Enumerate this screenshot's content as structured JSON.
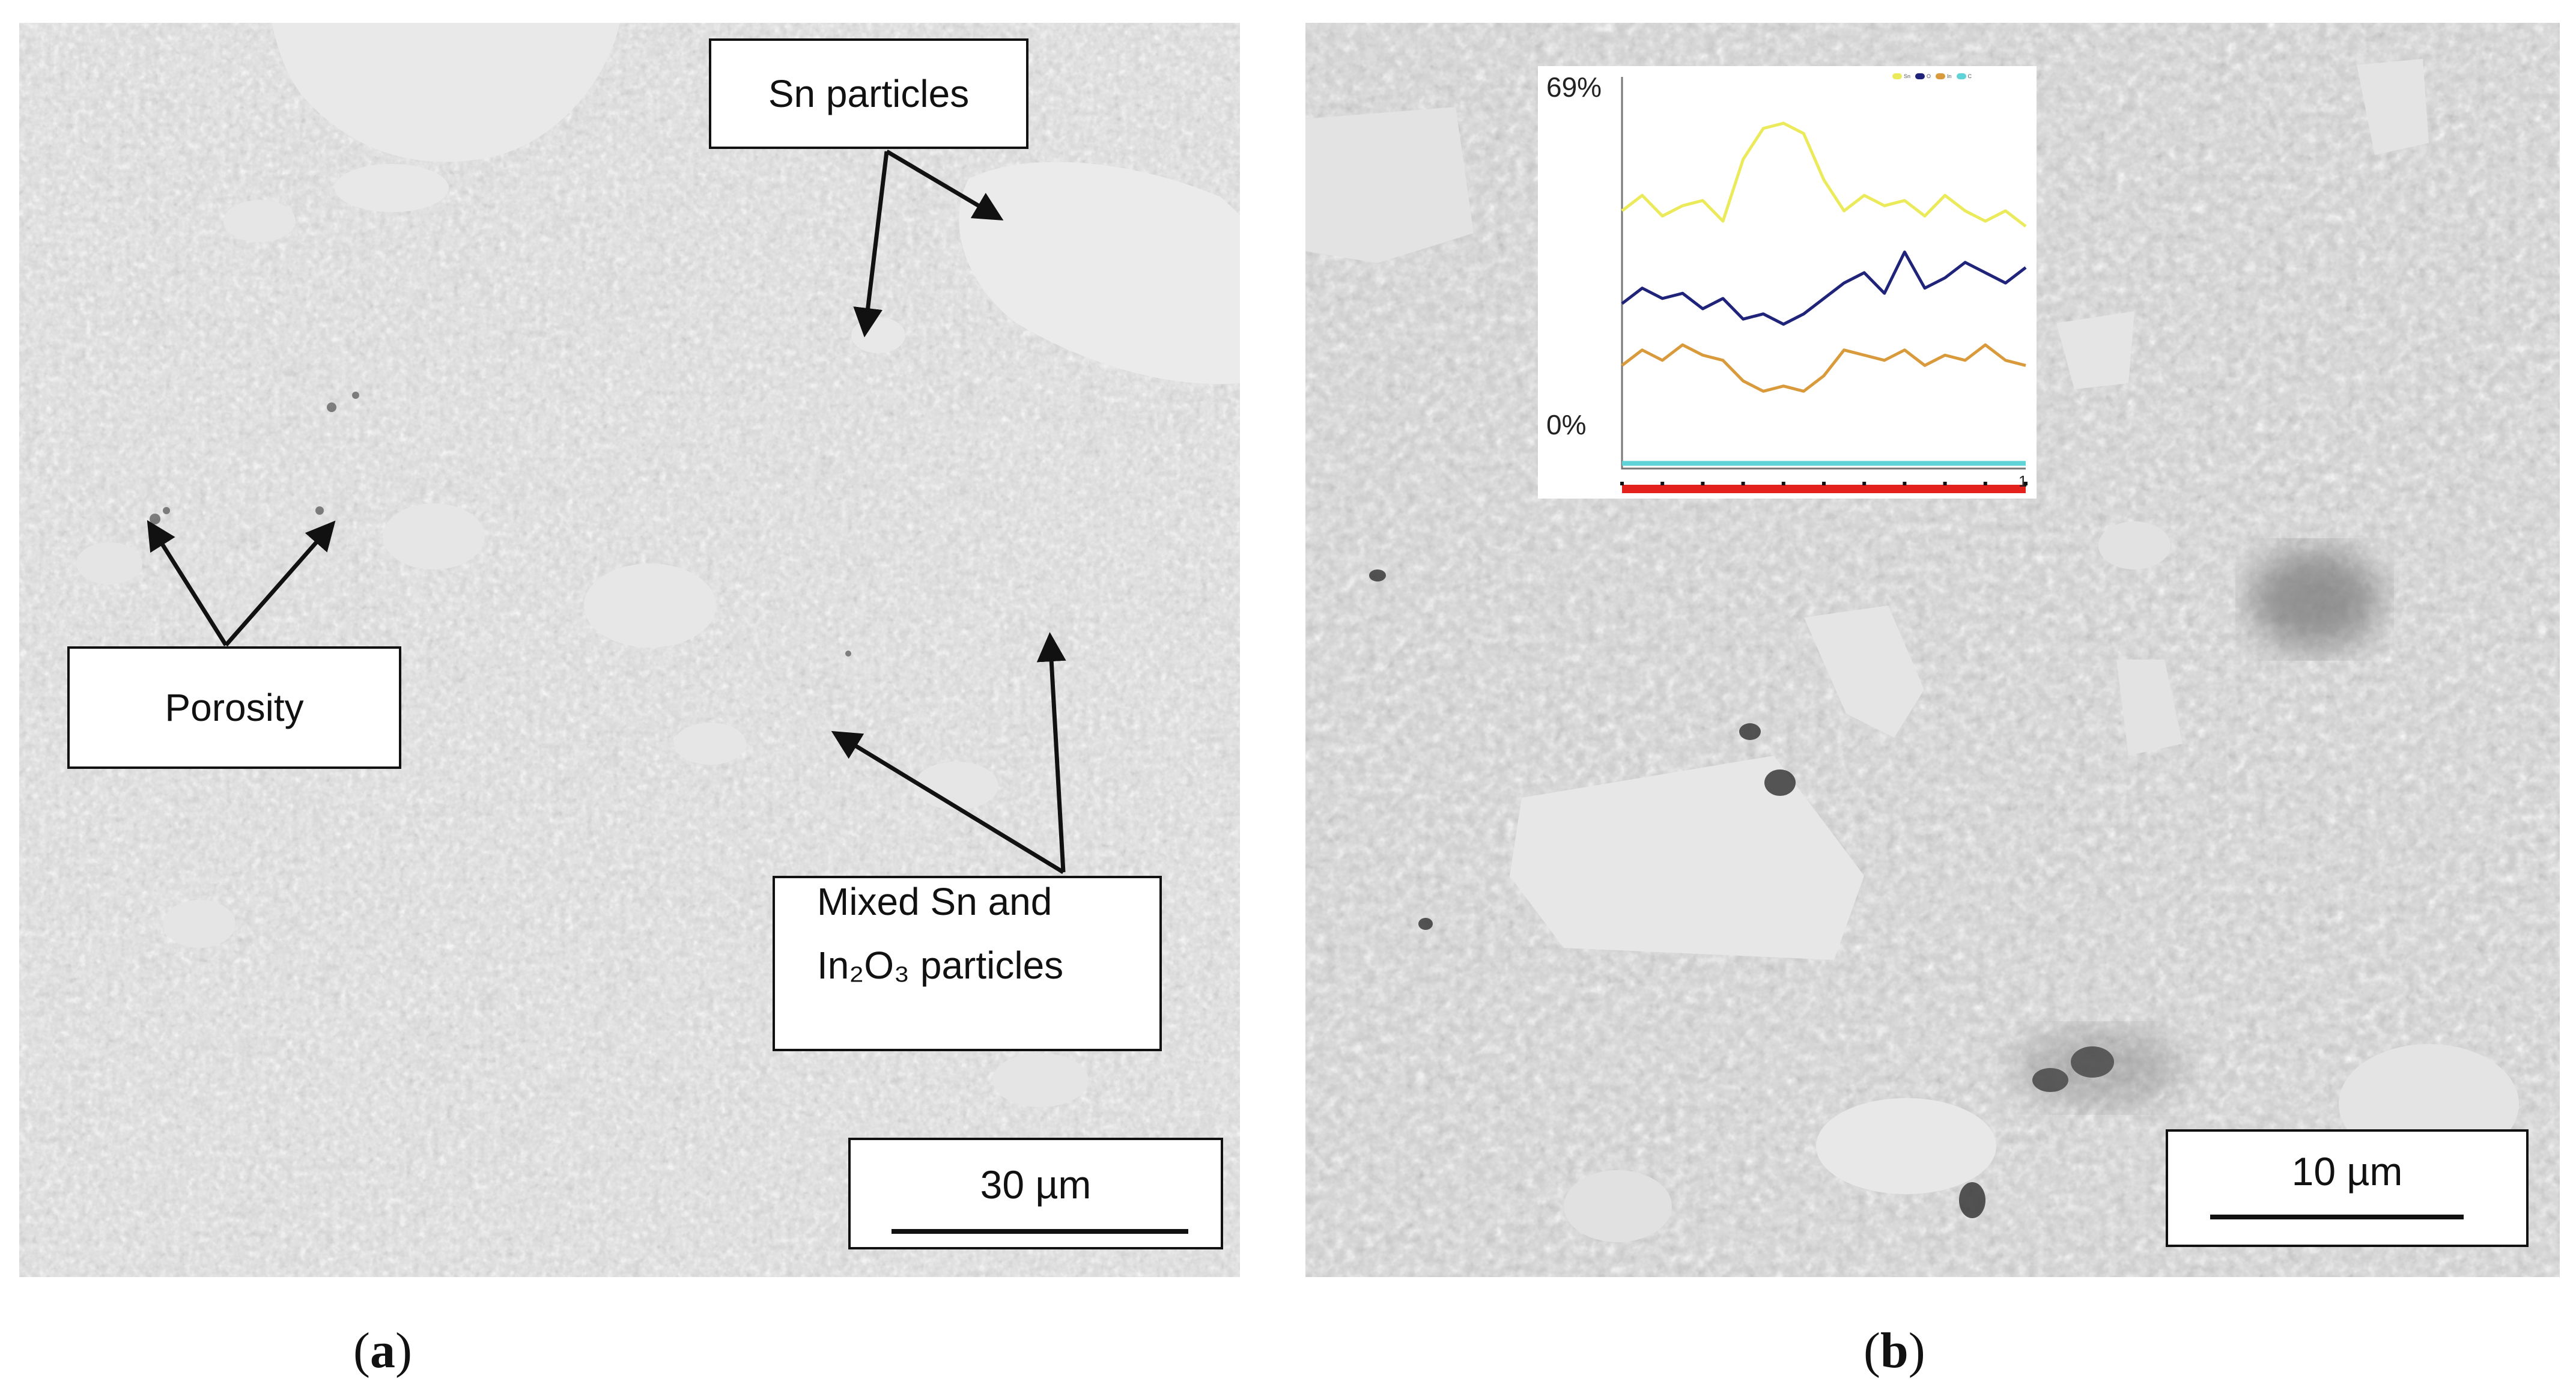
{
  "panels": {
    "a": {
      "caption_letter": "a",
      "annotations": {
        "sn_particles": "Sn particles",
        "porosity": "Porosity",
        "mixed_line1": "Mixed Sn and",
        "mixed_line2": "In₂O₃ particles"
      },
      "scale_label": "30 µm"
    },
    "b": {
      "caption_letter": "b",
      "scale_label": "10 µm",
      "inset": {
        "y_max_label": "69%",
        "y_min_label": "0%",
        "end_marker": "1",
        "legend": [
          {
            "name": "Sn",
            "color": "#eaea5a"
          },
          {
            "name": "O",
            "color": "#1f237a"
          },
          {
            "name": "In",
            "color": "#d99a3c"
          },
          {
            "name": "C",
            "color": "#5fd3d8"
          }
        ],
        "line_color": "#e3201b"
      }
    }
  },
  "chart_data": {
    "type": "line",
    "title": "",
    "xlabel": "",
    "ylabel": "",
    "ylim": [
      0,
      69
    ],
    "x": [
      0,
      0.05,
      0.1,
      0.15,
      0.2,
      0.25,
      0.3,
      0.35,
      0.4,
      0.45,
      0.5,
      0.55,
      0.6,
      0.65,
      0.7,
      0.75,
      0.8,
      0.85,
      0.9,
      0.95,
      1
    ],
    "series": [
      {
        "name": "Sn",
        "values": [
          50,
          53,
          49,
          51,
          52,
          48,
          60,
          66,
          67,
          65,
          56,
          50,
          53,
          51,
          52,
          49,
          53,
          50,
          48,
          50,
          47
        ]
      },
      {
        "name": "O",
        "values": [
          32,
          35,
          33,
          34,
          31,
          33,
          29,
          30,
          28,
          30,
          33,
          36,
          38,
          34,
          42,
          35,
          37,
          40,
          38,
          36,
          39
        ]
      },
      {
        "name": "In",
        "values": [
          20,
          23,
          21,
          24,
          22,
          21,
          17,
          15,
          16,
          15,
          18,
          23,
          22,
          21,
          23,
          20,
          22,
          21,
          24,
          21,
          20
        ]
      },
      {
        "name": "C",
        "values": [
          1,
          1,
          1,
          1,
          1,
          1,
          1,
          1,
          1,
          1,
          1,
          1,
          1,
          1,
          1,
          1,
          1,
          1,
          1,
          1,
          1
        ]
      }
    ]
  }
}
